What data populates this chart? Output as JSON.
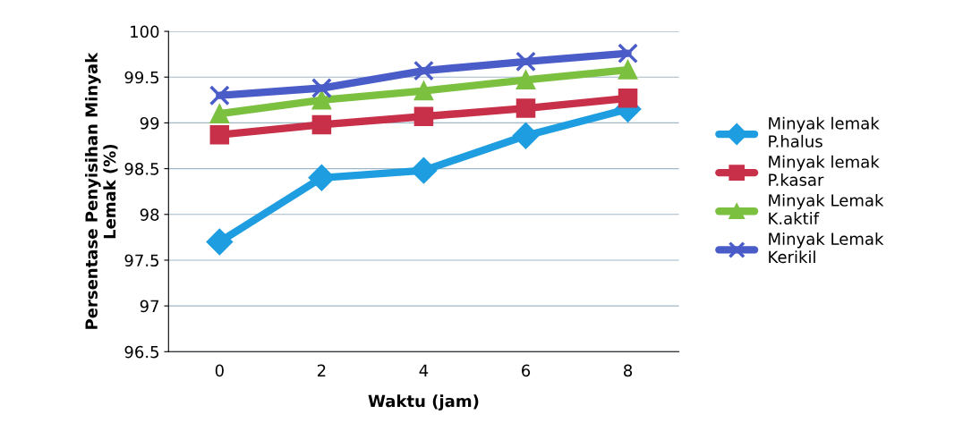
{
  "chart_data": {
    "type": "line",
    "xlabel": "Waktu (jam)",
    "ylabel": "Persentase Penyisihan Minyak\nLemak (%)",
    "categories": [
      "0",
      "2",
      "4",
      "6",
      "8"
    ],
    "series": [
      {
        "name": "Minyak lemak\nP.halus",
        "color": "#1e9ee0",
        "marker": "diamond",
        "values": [
          97.7,
          98.4,
          98.48,
          98.86,
          99.15
        ]
      },
      {
        "name": "Minyak lemak\nP.kasar",
        "color": "#c8304a",
        "marker": "square",
        "values": [
          98.87,
          98.98,
          99.07,
          99.16,
          99.27
        ]
      },
      {
        "name": "Minyak Lemak\nK.aktif",
        "color": "#7cc040",
        "marker": "triangle",
        "values": [
          99.1,
          99.25,
          99.35,
          99.47,
          99.58
        ]
      },
      {
        "name": "Minyak Lemak\nKerikil",
        "color": "#4a5cc8",
        "marker": "cross",
        "values": [
          99.3,
          99.38,
          99.57,
          99.67,
          99.76
        ]
      }
    ],
    "ylim": [
      96.5,
      100
    ],
    "yticks": [
      96.5,
      97,
      97.5,
      98,
      98.5,
      99,
      99.5,
      100
    ],
    "grid": "y",
    "legend": "right",
    "line_style": "solid"
  }
}
